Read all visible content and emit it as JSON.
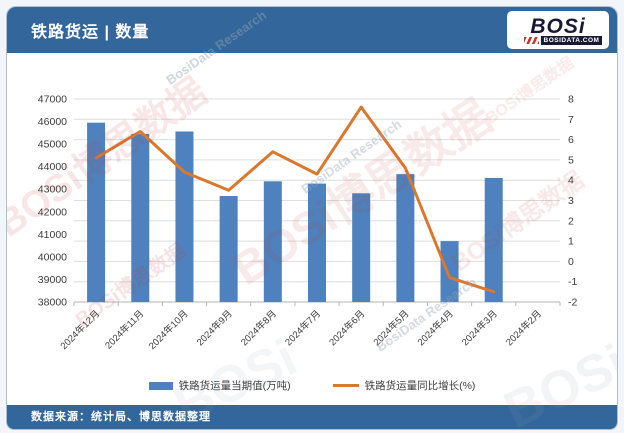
{
  "header": {
    "title": "铁路货运 | 数量",
    "logo": {
      "brand": "BOSi",
      "domain": "BOSIDATA.COM"
    }
  },
  "footer": {
    "source_label": "数据来源：统计局、博思数据整理"
  },
  "watermarks": {
    "red": "BOSi博思数据",
    "gray": "BosiData Research",
    "brand": "BOSi"
  },
  "colors": {
    "header_bg": "#33669A",
    "bar": "#4E81BD",
    "line": "#D9782E",
    "grid": "#DEDEDE",
    "axis_line": "#B5B5B5",
    "axis_text": "#3C3C3C",
    "logo_dark": "#191935",
    "logo_red": "#C23A2B"
  },
  "chart_data": {
    "type": "bar",
    "subtype": "combo-bar-line",
    "categories": [
      "2024年12月",
      "2024年11月",
      "2024年10月",
      "2024年9月",
      "2024年8月",
      "2024年7月",
      "2024年6月",
      "2024年5月",
      "2024年4月",
      "2024年3月",
      "2024年2月"
    ],
    "series": [
      {
        "name": "铁路货运量当期值(万吨)",
        "type": "bar",
        "axis": "left",
        "color": "#4E81BD",
        "values": [
          45950,
          45450,
          45560,
          42700,
          43350,
          43250,
          42820,
          43670,
          40700,
          43500,
          null
        ]
      },
      {
        "name": "铁路货运量同比增长(%)",
        "type": "line",
        "axis": "right",
        "color": "#D9782E",
        "values": [
          5.1,
          6.4,
          4.4,
          3.5,
          5.4,
          4.3,
          7.6,
          4.6,
          -0.8,
          -1.5,
          null
        ]
      }
    ],
    "left_axis": {
      "min": 38000,
      "max": 47000,
      "step": 1000,
      "ticks": [
        "47000",
        "46000",
        "45000",
        "44000",
        "43000",
        "42000",
        "41000",
        "40000",
        "39000",
        "38000"
      ]
    },
    "right_axis": {
      "min": -2,
      "max": 8,
      "step": 1,
      "ticks": [
        "8",
        "7",
        "6",
        "5",
        "4",
        "3",
        "2",
        "1",
        "0",
        "-1",
        "-2"
      ]
    },
    "grid": true,
    "legend_position": "bottom"
  }
}
